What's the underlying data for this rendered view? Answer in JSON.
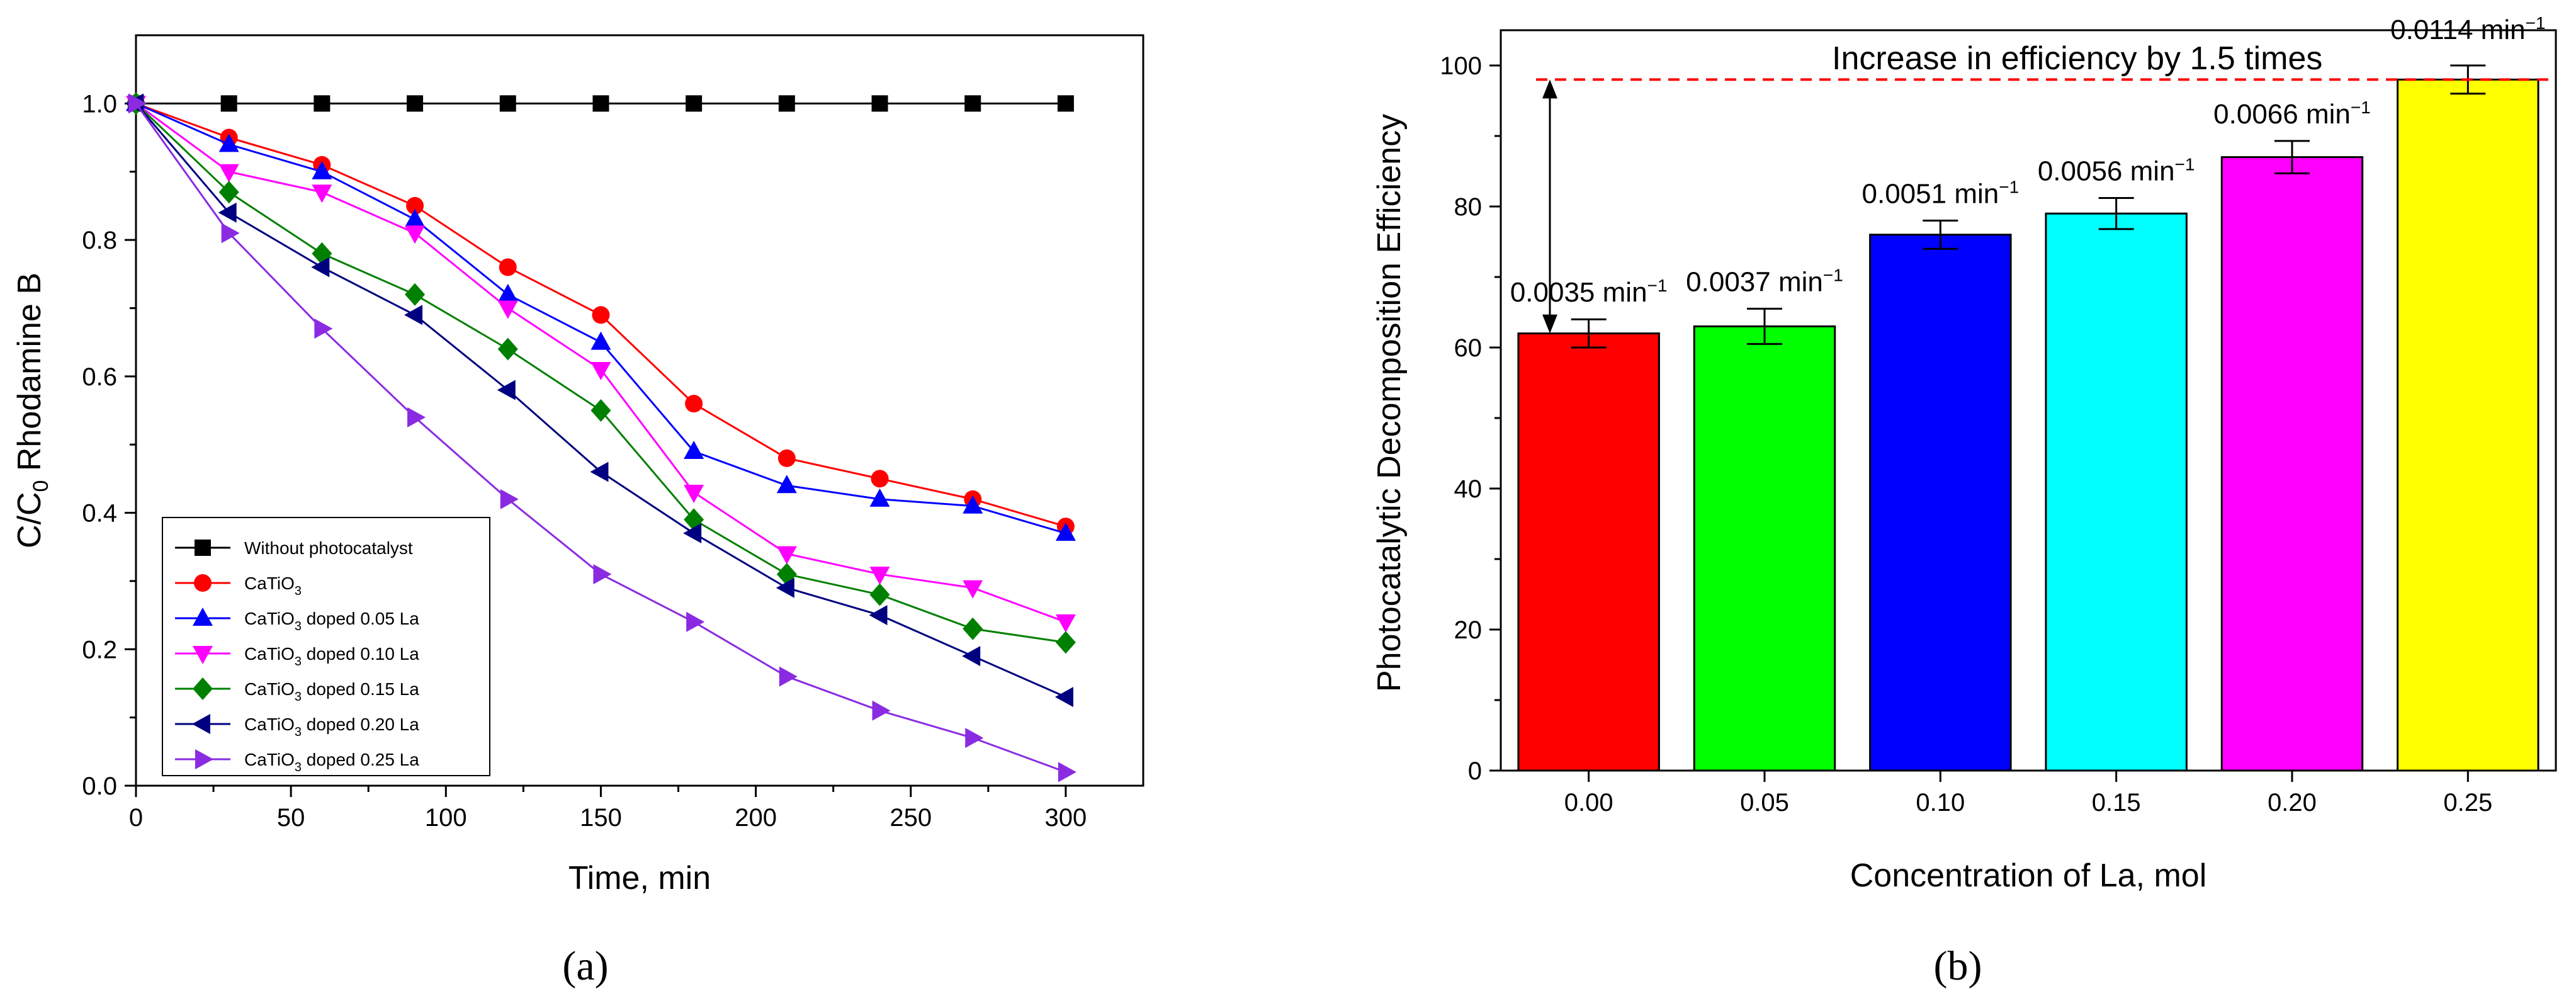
{
  "chart_data": [
    {
      "type": "line",
      "panel": "(a)",
      "xlabel": "Time, min",
      "ylabel_main": "C/C",
      "ylabel_sub": "0",
      "ylabel_rest": " Rhodamine B",
      "xlim": [
        0,
        325
      ],
      "ylim": [
        0,
        1.1
      ],
      "xticks": [
        0,
        50,
        100,
        150,
        200,
        250,
        300
      ],
      "yticks": [
        0.0,
        0.2,
        0.4,
        0.6,
        0.8,
        1.0
      ],
      "xtick_labels": [
        "0",
        "50",
        "100",
        "150",
        "200",
        "250",
        "300"
      ],
      "ytick_labels": [
        "0.0",
        "0.2",
        "0.4",
        "0.6",
        "0.8",
        "1.0"
      ],
      "x": [
        0,
        30,
        60,
        90,
        120,
        150,
        180,
        210,
        240,
        270,
        300
      ],
      "legend_position": "bottom-left",
      "series": [
        {
          "name": "Without photocatalyst",
          "name_main": "Without photocatalyst",
          "name_sub": "",
          "name_rest": "",
          "color": "#000000",
          "marker": "square",
          "values": [
            1.0,
            1.0,
            1.0,
            1.0,
            1.0,
            1.0,
            1.0,
            1.0,
            1.0,
            1.0,
            1.0
          ]
        },
        {
          "name": "CaTiO3",
          "name_main": "CaTiO",
          "name_sub": "3",
          "name_rest": "",
          "color": "#ff0000",
          "marker": "circle",
          "values": [
            1.0,
            0.95,
            0.91,
            0.85,
            0.76,
            0.69,
            0.56,
            0.48,
            0.45,
            0.42,
            0.38
          ]
        },
        {
          "name": "CaTiO3 doped 0.05 La",
          "name_main": "CaTiO",
          "name_sub": "3",
          "name_rest": " doped 0.05 La",
          "color": "#0000ff",
          "marker": "triangle-up",
          "values": [
            1.0,
            0.94,
            0.9,
            0.83,
            0.72,
            0.65,
            0.49,
            0.44,
            0.42,
            0.41,
            0.37
          ]
        },
        {
          "name": "CaTiO3 doped 0.10 La",
          "name_main": "CaTiO",
          "name_sub": "3",
          "name_rest": " doped 0.10 La",
          "color": "#ff00ff",
          "marker": "triangle-down",
          "values": [
            1.0,
            0.9,
            0.87,
            0.81,
            0.7,
            0.61,
            0.43,
            0.34,
            0.31,
            0.29,
            0.24
          ]
        },
        {
          "name": "CaTiO3 doped 0.15 La",
          "name_main": "CaTiO",
          "name_sub": "3",
          "name_rest": " doped 0.15 La",
          "color": "#008000",
          "marker": "diamond",
          "values": [
            1.0,
            0.87,
            0.78,
            0.72,
            0.64,
            0.55,
            0.39,
            0.31,
            0.28,
            0.23,
            0.21
          ]
        },
        {
          "name": "CaTiO3 doped 0.20 La",
          "name_main": "CaTiO",
          "name_sub": "3",
          "name_rest": " doped 0.20 La",
          "color": "#000080",
          "marker": "triangle-left",
          "values": [
            1.0,
            0.84,
            0.76,
            0.69,
            0.58,
            0.46,
            0.37,
            0.29,
            0.25,
            0.19,
            0.13
          ]
        },
        {
          "name": "CaTiO3 doped 0.25 La",
          "name_main": "CaTiO",
          "name_sub": "3",
          "name_rest": " doped 0.25 La",
          "color": "#8a2be2",
          "marker": "triangle-right",
          "values": [
            1.0,
            0.81,
            0.67,
            0.54,
            0.42,
            0.31,
            0.24,
            0.16,
            0.11,
            0.07,
            0.02
          ]
        }
      ]
    },
    {
      "type": "bar",
      "panel": "(b)",
      "xlabel": "Concentration of La, mol",
      "ylabel": "Photocatalytic Decomposition Efficiency",
      "ylim": [
        0,
        105
      ],
      "yticks": [
        0,
        20,
        40,
        60,
        80,
        100
      ],
      "ytick_labels": [
        "0",
        "20",
        "40",
        "60",
        "80",
        "100"
      ],
      "categories": [
        "0.00",
        "0.05",
        "0.10",
        "0.15",
        "0.20",
        "0.25"
      ],
      "values": [
        62,
        63,
        76,
        79,
        87,
        98
      ],
      "errors": [
        2.0,
        2.5,
        2.0,
        2.2,
        2.3,
        2.0
      ],
      "colors": [
        "#ff0000",
        "#00ff00",
        "#0000ff",
        "#00ffff",
        "#ff00ff",
        "#ffff00"
      ],
      "rate_values": [
        "0.0035",
        "0.0037",
        "0.0051",
        "0.0056",
        "0.0066",
        "0.0114"
      ],
      "rate_unit": "min",
      "rate_exponent": "−1",
      "annotation": "Increase in efficiency by 1.5 times",
      "reference_line": 98,
      "arrow_from": 98,
      "arrow_to": 62
    }
  ]
}
